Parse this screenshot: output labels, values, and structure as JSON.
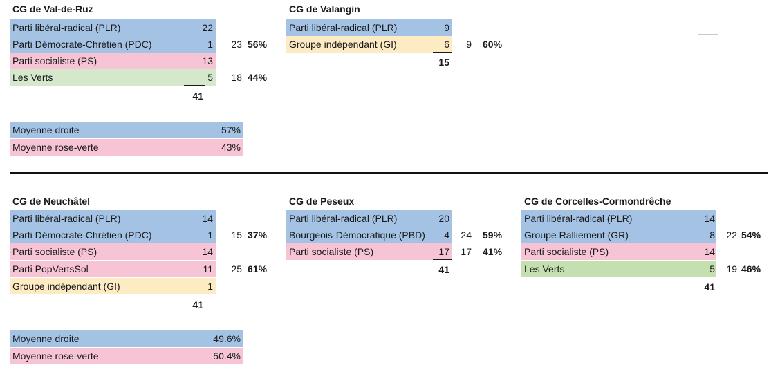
{
  "councils": [
    {
      "title": "CG de Val-de-Ruz",
      "rows": [
        "Parti libéral-radical (PLR)",
        "Parti Démocrate-Chrétien (PDC)",
        "Parti socialiste (PS)",
        "Les Verts"
      ],
      "seats": [
        "22",
        "1",
        "13",
        "5"
      ],
      "group_sums": [
        "23",
        "18"
      ],
      "group_pcts": [
        "56%",
        "44%"
      ],
      "total": "41"
    },
    {
      "title": "CG de Valangin",
      "rows": [
        "Parti libéral-radical (PLR)",
        "Groupe indépendant (GI)"
      ],
      "seats": [
        "9",
        "6"
      ],
      "group_sums": [
        "9"
      ],
      "group_pcts": [
        "60%"
      ],
      "total": "15"
    },
    {
      "title": "CG de Neuchâtel",
      "rows": [
        "Parti libéral-radical (PLR)",
        "Parti Démocrate-Chrétien (PDC)",
        "Parti socialiste (PS)",
        "Parti PopVertsSol",
        "Groupe indépendant (GI)"
      ],
      "seats": [
        "14",
        "1",
        "14",
        "11",
        "1"
      ],
      "group_sums": [
        "15",
        "25"
      ],
      "group_pcts": [
        "37%",
        "61%"
      ],
      "total": "41"
    },
    {
      "title": "CG de Peseux",
      "rows": [
        "Parti libéral-radical (PLR)",
        "Bourgeois-Démocratique (PBD)",
        "Parti socialiste (PS)"
      ],
      "seats": [
        "20",
        "4",
        "17"
      ],
      "group_sums": [
        "24",
        "17"
      ],
      "group_pcts": [
        "59%",
        "41%"
      ],
      "total": "41"
    },
    {
      "title": "CG de Corcelles-Cormondrêche",
      "rows": [
        "Parti libéral-radical (PLR)",
        "Groupe Ralliement (GR)",
        "Parti socialiste (PS)",
        "Les Verts"
      ],
      "seats": [
        "14",
        "8",
        "14",
        "5"
      ],
      "group_sums": [
        "22",
        "19"
      ],
      "group_pcts": [
        "54%",
        "46%"
      ],
      "total": "41"
    }
  ],
  "averages": [
    {
      "right_label": "Moyenne droite",
      "right_value": "57%",
      "left_label": "Moyenne rose-verte",
      "left_value": "43%"
    },
    {
      "right_label": "Moyenne droite",
      "right_value": "49.6%",
      "left_label": "Moyenne rose-verte",
      "left_value": "50.4%"
    }
  ],
  "colors": {
    "right": "#a3c2e4",
    "left": "#f6c4d4",
    "green": "#d6e8cc",
    "independent": "#fdebc4"
  }
}
